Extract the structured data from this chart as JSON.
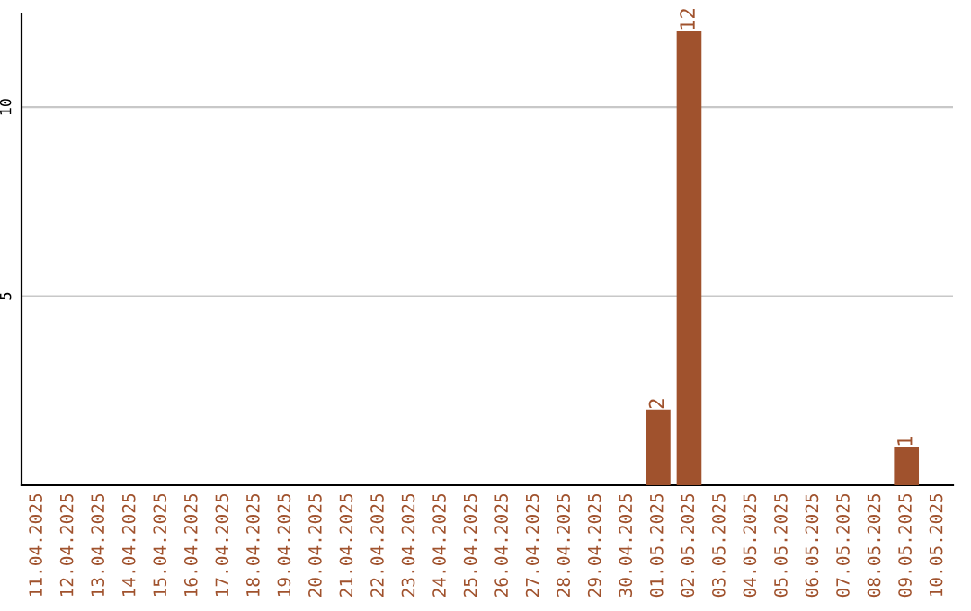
{
  "chart_data": {
    "type": "bar",
    "categories": [
      "11.04.2025",
      "12.04.2025",
      "13.04.2025",
      "14.04.2025",
      "15.04.2025",
      "16.04.2025",
      "17.04.2025",
      "18.04.2025",
      "19.04.2025",
      "20.04.2025",
      "21.04.2025",
      "22.04.2025",
      "23.04.2025",
      "24.04.2025",
      "25.04.2025",
      "26.04.2025",
      "27.04.2025",
      "28.04.2025",
      "29.04.2025",
      "30.04.2025",
      "01.05.2025",
      "02.05.2025",
      "03.05.2025",
      "04.05.2025",
      "05.05.2025",
      "06.05.2025",
      "07.05.2025",
      "08.05.2025",
      "09.05.2025",
      "10.05.2025"
    ],
    "values": [
      0,
      0,
      0,
      0,
      0,
      0,
      0,
      0,
      0,
      0,
      0,
      0,
      0,
      0,
      0,
      0,
      0,
      0,
      0,
      0,
      2,
      12,
      0,
      0,
      0,
      0,
      0,
      0,
      1,
      0
    ],
    "value_labels": [
      null,
      null,
      null,
      null,
      null,
      null,
      null,
      null,
      null,
      null,
      null,
      null,
      null,
      null,
      null,
      null,
      null,
      null,
      null,
      null,
      "2",
      "12",
      null,
      null,
      null,
      null,
      null,
      null,
      "1",
      null
    ],
    "color": "#a0522d",
    "ylim": [
      0,
      12.45
    ],
    "yticks": [
      5,
      10
    ],
    "grid": "y"
  }
}
